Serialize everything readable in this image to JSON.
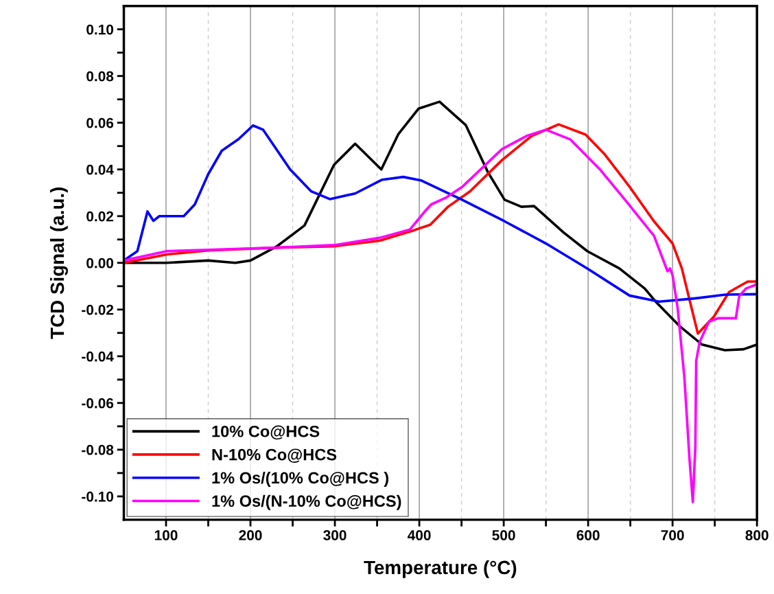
{
  "chart_data": {
    "type": "line",
    "xlabel": "Temperature (°C)",
    "ylabel": "TCD Signal (a.u.)",
    "xlim": [
      50,
      800
    ],
    "ylim": [
      -0.11,
      0.11
    ],
    "xticks": [
      100,
      {
        "value": 150,
        "label": null
      },
      200,
      {
        "value": 250,
        "label": null
      },
      300,
      {
        "value": 350,
        "label": null
      },
      400,
      {
        "value": 450,
        "label": null
      },
      500,
      {
        "value": 550,
        "label": null
      },
      600,
      {
        "value": 650,
        "label": null
      },
      700,
      {
        "value": 750,
        "label": null
      },
      800
    ],
    "yticks": [
      {
        "value": -0.1,
        "label": "-0.10"
      },
      {
        "value": -0.09,
        "label": null
      },
      {
        "value": -0.08,
        "label": "-0.08"
      },
      {
        "value": -0.07,
        "label": null
      },
      {
        "value": -0.06,
        "label": "-0.06"
      },
      {
        "value": -0.05,
        "label": null
      },
      {
        "value": -0.04,
        "label": "-0.04"
      },
      {
        "value": -0.03,
        "label": null
      },
      {
        "value": -0.02,
        "label": "-0.02"
      },
      {
        "value": -0.01,
        "label": null
      },
      {
        "value": 0,
        "label": "0.00"
      },
      {
        "value": 0.01,
        "label": null
      },
      {
        "value": 0.02,
        "label": "0.02"
      },
      {
        "value": 0.03,
        "label": null
      },
      {
        "value": 0.04,
        "label": "0.04"
      },
      {
        "value": 0.05,
        "label": null
      },
      {
        "value": 0.06,
        "label": "0.06"
      },
      {
        "value": 0.07,
        "label": null
      },
      {
        "value": 0.08,
        "label": "0.08"
      },
      {
        "value": 0.09,
        "label": null
      },
      {
        "value": 0.1,
        "label": "0.10"
      }
    ],
    "grid": "x",
    "legend": "bottom left",
    "marker": "none",
    "line_style": "solid",
    "series": [
      {
        "name": "10% Co@HCS",
        "color": "#000000",
        "x": [
          50,
          100,
          150,
          182,
          200,
          231,
          264,
          299,
          324,
          355,
          375,
          399,
          424,
          455,
          481,
          501,
          521,
          536,
          571,
          599,
          637,
          667,
          681,
          708,
          735,
          762,
          784,
          800
        ],
        "values": [
          0,
          0,
          0.001,
          0,
          0.001,
          0.007,
          0.016,
          0.042,
          0.051,
          0.04,
          0.055,
          0.066,
          0.069,
          0.059,
          0.039,
          0.027,
          0.024,
          0.0243,
          0.013,
          0.005,
          -0.0024,
          -0.011,
          -0.017,
          -0.027,
          -0.035,
          -0.0374,
          -0.037,
          -0.035
        ]
      },
      {
        "name": "N-10% Co@HCS",
        "color": "#ff0000",
        "x": [
          50,
          101,
          150,
          231,
          299,
          353,
          394,
          413,
          434,
          460,
          498,
          533,
          565,
          597,
          620,
          649,
          678,
          700,
          711,
          719,
          730,
          749,
          767,
          789,
          800
        ],
        "values": [
          0,
          0.0036,
          0.0053,
          0.0065,
          0.0071,
          0.0095,
          0.014,
          0.0163,
          0.024,
          0.0306,
          0.044,
          0.0543,
          0.0593,
          0.0549,
          0.0463,
          0.0326,
          0.0178,
          0.0083,
          -0.0024,
          -0.0142,
          -0.0303,
          -0.023,
          -0.0125,
          -0.008,
          -0.008
        ]
      },
      {
        "name": "1% Os/(10% Co@HCS )",
        "color": "#0000ff",
        "x": [
          50,
          66,
          78,
          85,
          92,
          121,
          134,
          150,
          166,
          186,
          203,
          215,
          247,
          272,
          294,
          324,
          356,
          381,
          402,
          432,
          449,
          501,
          550,
          599,
          649,
          684,
          722,
          763,
          800
        ],
        "values": [
          0.001,
          0.005,
          0.022,
          0.018,
          0.02,
          0.02,
          0.025,
          0.038,
          0.048,
          0.053,
          0.0588,
          0.057,
          0.04,
          0.0306,
          0.0273,
          0.0297,
          0.0356,
          0.0368,
          0.0353,
          0.0302,
          0.0273,
          0.0178,
          0.0083,
          -0.0024,
          -0.014,
          -0.0166,
          -0.0154,
          -0.0136,
          -0.0134
        ]
      },
      {
        "name": "1% Os/(N-10% Co@HCS)",
        "color": "#ff00ff",
        "x": [
          50,
          101,
          150,
          231,
          299,
          353,
          389,
          407,
          414,
          432,
          451,
          498,
          527,
          550,
          579,
          614,
          643,
          678,
          694,
          697,
          700,
          706,
          714,
          720,
          724,
          727,
          728,
          732,
          743,
          754,
          775,
          779,
          787,
          800
        ],
        "values": [
          0.001,
          0.005,
          0.0056,
          0.0065,
          0.0076,
          0.0107,
          0.0143,
          0.0222,
          0.025,
          0.028,
          0.0326,
          0.0487,
          0.0543,
          0.057,
          0.0528,
          0.04,
          0.0273,
          0.0116,
          -0.0036,
          -0.0024,
          -0.0053,
          -0.0193,
          -0.049,
          -0.0837,
          -0.1024,
          -0.0786,
          -0.042,
          -0.034,
          -0.0252,
          -0.0237,
          -0.0237,
          -0.0142,
          -0.011,
          -0.0092
        ]
      }
    ]
  }
}
